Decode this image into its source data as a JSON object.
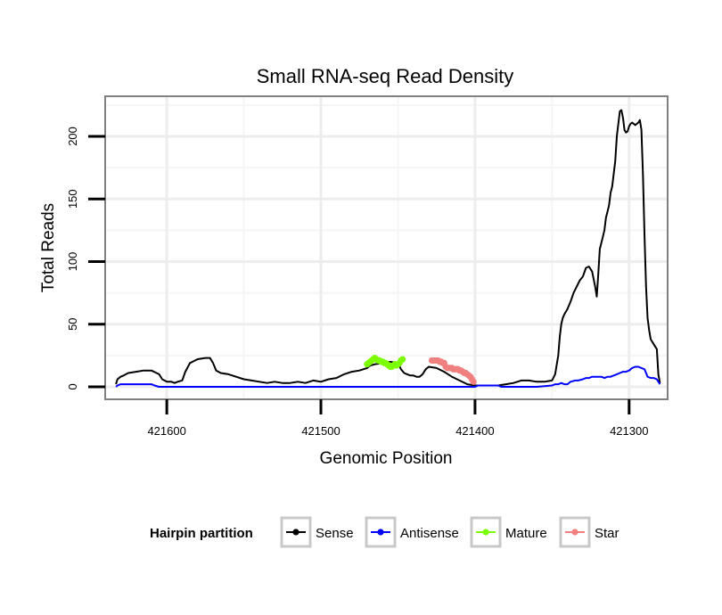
{
  "chart_data": {
    "type": "line",
    "title": "Small RNA-seq Read Density",
    "xlabel": "Genomic Position",
    "ylabel": "Total Reads",
    "x_reversed": true,
    "xlim": [
      421640,
      421275
    ],
    "ylim": [
      -10,
      232
    ],
    "x_ticks": [
      421600,
      421500,
      421400,
      421300
    ],
    "x_tick_labels": [
      "421600",
      "421500",
      "421400",
      "421300"
    ],
    "y_ticks": [
      0,
      50,
      100,
      150,
      200
    ],
    "y_tick_labels": [
      "0",
      "50",
      "100",
      "150",
      "200"
    ],
    "grid": true,
    "legend": {
      "title": "Hairpin partition",
      "position": "bottom",
      "entries": [
        {
          "label": "Sense",
          "color": "#000000"
        },
        {
          "label": "Antisense",
          "color": "#0000ff"
        },
        {
          "label": "Mature",
          "color": "#7cfc00"
        },
        {
          "label": "Star",
          "color": "#f08080"
        }
      ]
    },
    "series": [
      {
        "name": "Sense",
        "color": "#000000",
        "style": "line",
        "x": [
          421633,
          421632,
          421630,
          421628,
          421625,
          421620,
          421615,
          421610,
          421605,
          421603,
          421600,
          421597,
          421595,
          421593,
          421590,
          421588,
          421585,
          421580,
          421575,
          421572,
          421570,
          421568,
          421565,
          421560,
          421555,
          421550,
          421545,
          421540,
          421535,
          421530,
          421525,
          421520,
          421515,
          421510,
          421505,
          421500,
          421495,
          421490,
          421485,
          421480,
          421475,
          421470,
          421468,
          421465,
          421460,
          421455,
          421450,
          421448,
          421446,
          421444,
          421442,
          421440,
          421438,
          421436,
          421434,
          421432,
          421430,
          421425,
          421420,
          421415,
          421410,
          421405,
          421400,
          421398,
          421395,
          421390,
          421385,
          421380,
          421375,
          421370,
          421365,
          421360,
          421355,
          421350,
          421348,
          421346,
          421345,
          421344,
          421343,
          421342,
          421340,
          421338,
          421336,
          421334,
          421332,
          421330,
          421328,
          421326,
          421324,
          421322,
          421321,
          421320,
          421319,
          421318,
          421317,
          421316,
          421315,
          421314,
          421313,
          421312,
          421311,
          421310,
          421309,
          421308,
          421307,
          421306,
          421305,
          421304,
          421303,
          421302,
          421301,
          421300,
          421299,
          421298,
          421297,
          421296,
          421295,
          421294,
          421293,
          421292,
          421291,
          421290,
          421289,
          421288,
          421287,
          421286,
          421284,
          421282,
          421281,
          421280
        ],
        "y": [
          2,
          6,
          8,
          9,
          11,
          12,
          13,
          13,
          10,
          6,
          4,
          4,
          3,
          4,
          5,
          12,
          19,
          22,
          23,
          23,
          19,
          13,
          11,
          10,
          8,
          6,
          5,
          4,
          3,
          4,
          3,
          3,
          4,
          3,
          5,
          4,
          6,
          7,
          10,
          12,
          13,
          15,
          17,
          18,
          19,
          20,
          19,
          14,
          11,
          10,
          9,
          9,
          8,
          8,
          10,
          14,
          16,
          15,
          12,
          8,
          5,
          2,
          1,
          1,
          1,
          1,
          1,
          2,
          3,
          5,
          5,
          4,
          4,
          5,
          10,
          25,
          40,
          50,
          55,
          58,
          62,
          68,
          75,
          80,
          85,
          88,
          95,
          96,
          92,
          80,
          72,
          90,
          110,
          115,
          120,
          125,
          135,
          140,
          145,
          155,
          160,
          170,
          180,
          200,
          210,
          220,
          221,
          215,
          205,
          203,
          204,
          208,
          210,
          211,
          210,
          209,
          210,
          211,
          213,
          205,
          170,
          120,
          80,
          55,
          45,
          38,
          34,
          30,
          10,
          3
        ]
      },
      {
        "name": "Antisense",
        "color": "#0000ff",
        "style": "line",
        "x": [
          421633,
          421632,
          421630,
          421620,
          421610,
          421608,
          421605,
          421590,
          421570,
          421550,
          421530,
          421500,
          421480,
          421460,
          421440,
          421420,
          421400,
          421398,
          421395,
          421390,
          421385,
          421383,
          421380,
          421370,
          421360,
          421350,
          421348,
          421346,
          421344,
          421342,
          421340,
          421338,
          421335,
          421333,
          421330,
          421328,
          421326,
          421324,
          421322,
          421320,
          421318,
          421316,
          421314,
          421312,
          421310,
          421308,
          421306,
          421304,
          421302,
          421300,
          421298,
          421296,
          421294,
          421292,
          421290,
          421288,
          421286,
          421284,
          421282,
          421280
        ],
        "y": [
          0,
          1,
          2,
          2,
          2,
          1,
          0,
          0,
          0,
          0,
          0,
          0,
          0,
          0,
          0,
          0,
          0,
          1,
          1,
          1,
          1,
          0,
          0,
          0,
          0,
          1,
          2,
          2,
          3,
          2,
          2,
          4,
          5,
          5,
          6,
          7,
          7,
          8,
          8,
          8,
          8,
          7,
          8,
          8,
          9,
          10,
          11,
          12,
          12,
          13,
          15,
          16,
          16,
          15,
          14,
          8,
          7,
          7,
          6,
          2
        ]
      },
      {
        "name": "Mature",
        "color": "#7cfc00",
        "style": "points",
        "x": [
          421470,
          421469,
          421468,
          421467,
          421466,
          421465,
          421464,
          421463,
          421462,
          421461,
          421460,
          421459,
          421458,
          421457,
          421456,
          421455,
          421454,
          421453,
          421452,
          421451,
          421450,
          421449,
          421448,
          421447
        ],
        "y": [
          18,
          19,
          20,
          21,
          22,
          23,
          22,
          21,
          21,
          20,
          20,
          19,
          19,
          18,
          17,
          16,
          16,
          17,
          18,
          17,
          18,
          19,
          21,
          22
        ]
      },
      {
        "name": "Star",
        "color": "#f08080",
        "style": "points",
        "x": [
          421428,
          421427,
          421426,
          421425,
          421424,
          421423,
          421422,
          421421,
          421420,
          421419,
          421418,
          421417,
          421416,
          421415,
          421414,
          421413,
          421412,
          421411,
          421410,
          421409,
          421408,
          421407,
          421406,
          421405,
          421404,
          421403,
          421402,
          421401
        ],
        "y": [
          21,
          21,
          21,
          21,
          21,
          20,
          20,
          19,
          19,
          16,
          15,
          15,
          15,
          15,
          14,
          14,
          14,
          14,
          13,
          13,
          12,
          11,
          11,
          10,
          9,
          8,
          6,
          4
        ]
      }
    ]
  }
}
